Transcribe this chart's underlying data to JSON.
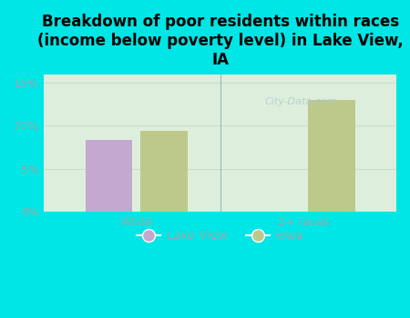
{
  "title": "Breakdown of poor residents within races\n(income below poverty level) in Lake View,\nIA",
  "categories": [
    "White",
    "2+ races"
  ],
  "lake_view_values": [
    8.3,
    null
  ],
  "iowa_values": [
    9.4,
    13.0
  ],
  "lake_view_color": "#c4a8d0",
  "iowa_color": "#bdc98a",
  "background_color": "#00e5e5",
  "plot_bg_color": "#deeedd",
  "ylim": [
    0,
    0.16
  ],
  "yticks": [
    0.0,
    0.05,
    0.1,
    0.15
  ],
  "ytick_labels": [
    "0%",
    "5%",
    "10%",
    "15%"
  ],
  "tick_color": "#99aaaa",
  "bar_width": 0.28,
  "legend_labels": [
    "Lake View",
    "Iowa"
  ],
  "watermark": "City-Data.com",
  "title_fontsize": 12,
  "grid_color": "#c8ddc8"
}
